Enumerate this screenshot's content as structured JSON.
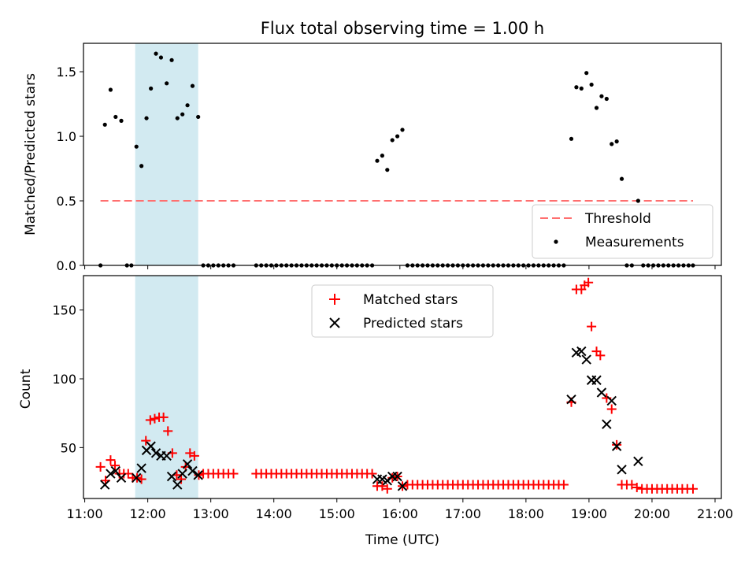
{
  "figure": {
    "title": "Flux total observing time = 1.00 h"
  },
  "colors": {
    "highlight": "#add8e6",
    "threshold": "#ff6f6f",
    "measurement": "#000000",
    "matched": "#ff0000",
    "predicted": "#000000"
  },
  "chart_data": [
    {
      "type": "scatter",
      "name": "ratio-plot",
      "ylabel": "Matched/Predicted stars",
      "xlabel": "",
      "xlim_hours": [
        10.98,
        21.1
      ],
      "ylim": [
        0,
        1.72
      ],
      "yticks": [
        0.0,
        0.5,
        1.0,
        1.5
      ],
      "ytick_labels": [
        "0.0",
        "0.5",
        "1.0",
        "1.5"
      ],
      "highlight_span_hours": [
        11.8,
        12.8
      ],
      "threshold": {
        "label": "Threshold",
        "value": 0.5,
        "x_range_hours": [
          11.25,
          20.65
        ]
      },
      "measurements_label": "Measurements",
      "measurements": [
        [
          11.25,
          0.0
        ],
        [
          11.32,
          1.09
        ],
        [
          11.41,
          1.36
        ],
        [
          11.49,
          1.15
        ],
        [
          11.58,
          1.12
        ],
        [
          11.67,
          0.0
        ],
        [
          11.74,
          0.0
        ],
        [
          11.82,
          0.92
        ],
        [
          11.9,
          0.77
        ],
        [
          11.98,
          1.14
        ],
        [
          12.05,
          1.37
        ],
        [
          12.13,
          1.64
        ],
        [
          12.21,
          1.61
        ],
        [
          12.3,
          1.41
        ],
        [
          12.38,
          1.59
        ],
        [
          12.47,
          1.14
        ],
        [
          12.55,
          1.17
        ],
        [
          12.63,
          1.24
        ],
        [
          12.71,
          1.39
        ],
        [
          12.8,
          1.15
        ],
        [
          12.88,
          0.0
        ],
        [
          12.96,
          0.0
        ],
        [
          13.04,
          0.0
        ],
        [
          13.12,
          0.0
        ],
        [
          13.2,
          0.0
        ],
        [
          13.28,
          0.0
        ],
        [
          13.36,
          0.0
        ],
        [
          13.72,
          0.0
        ],
        [
          13.8,
          0.0
        ],
        [
          13.88,
          0.0
        ],
        [
          13.96,
          0.0
        ],
        [
          14.04,
          0.0
        ],
        [
          14.12,
          0.0
        ],
        [
          14.2,
          0.0
        ],
        [
          14.28,
          0.0
        ],
        [
          14.36,
          0.0
        ],
        [
          14.44,
          0.0
        ],
        [
          14.52,
          0.0
        ],
        [
          14.6,
          0.0
        ],
        [
          14.68,
          0.0
        ],
        [
          14.76,
          0.0
        ],
        [
          14.84,
          0.0
        ],
        [
          14.92,
          0.0
        ],
        [
          15.0,
          0.0
        ],
        [
          15.08,
          0.0
        ],
        [
          15.16,
          0.0
        ],
        [
          15.24,
          0.0
        ],
        [
          15.32,
          0.0
        ],
        [
          15.4,
          0.0
        ],
        [
          15.48,
          0.0
        ],
        [
          15.56,
          0.0
        ],
        [
          15.64,
          0.81
        ],
        [
          15.72,
          0.85
        ],
        [
          15.8,
          0.74
        ],
        [
          15.88,
          0.97
        ],
        [
          15.96,
          1.0
        ],
        [
          16.04,
          1.05
        ],
        [
          16.12,
          0.0
        ],
        [
          16.2,
          0.0
        ],
        [
          16.28,
          0.0
        ],
        [
          16.36,
          0.0
        ],
        [
          16.44,
          0.0
        ],
        [
          16.52,
          0.0
        ],
        [
          16.6,
          0.0
        ],
        [
          16.68,
          0.0
        ],
        [
          16.76,
          0.0
        ],
        [
          16.84,
          0.0
        ],
        [
          16.92,
          0.0
        ],
        [
          17.0,
          0.0
        ],
        [
          17.08,
          0.0
        ],
        [
          17.16,
          0.0
        ],
        [
          17.24,
          0.0
        ],
        [
          17.32,
          0.0
        ],
        [
          17.4,
          0.0
        ],
        [
          17.48,
          0.0
        ],
        [
          17.56,
          0.0
        ],
        [
          17.64,
          0.0
        ],
        [
          17.72,
          0.0
        ],
        [
          17.8,
          0.0
        ],
        [
          17.88,
          0.0
        ],
        [
          17.96,
          0.0
        ],
        [
          18.04,
          0.0
        ],
        [
          18.12,
          0.0
        ],
        [
          18.2,
          0.0
        ],
        [
          18.28,
          0.0
        ],
        [
          18.36,
          0.0
        ],
        [
          18.44,
          0.0
        ],
        [
          18.52,
          0.0
        ],
        [
          18.6,
          0.0
        ],
        [
          18.72,
          0.98
        ],
        [
          18.8,
          1.38
        ],
        [
          18.88,
          1.37
        ],
        [
          18.96,
          1.49
        ],
        [
          19.04,
          1.4
        ],
        [
          19.12,
          1.22
        ],
        [
          19.2,
          1.31
        ],
        [
          19.28,
          1.29
        ],
        [
          19.36,
          0.94
        ],
        [
          19.44,
          0.96
        ],
        [
          19.52,
          0.67
        ],
        [
          19.6,
          0.0
        ],
        [
          19.68,
          0.0
        ],
        [
          19.78,
          0.5
        ],
        [
          19.86,
          0.0
        ],
        [
          19.94,
          0.0
        ],
        [
          20.02,
          0.0
        ],
        [
          20.1,
          0.0
        ],
        [
          20.18,
          0.0
        ],
        [
          20.26,
          0.0
        ],
        [
          20.34,
          0.0
        ],
        [
          20.42,
          0.0
        ],
        [
          20.5,
          0.0
        ],
        [
          20.58,
          0.0
        ],
        [
          20.65,
          0.0
        ]
      ]
    },
    {
      "type": "scatter",
      "name": "count-plot",
      "ylabel": "Count",
      "xlabel": "Time (UTC)",
      "xlim_hours": [
        10.98,
        21.1
      ],
      "ylim": [
        13,
        175
      ],
      "yticks": [
        50,
        100,
        150
      ],
      "ytick_labels": [
        "50",
        "100",
        "150"
      ],
      "xticks_hours": [
        11,
        12,
        13,
        14,
        15,
        16,
        17,
        18,
        19,
        20,
        21
      ],
      "xtick_labels": [
        "11:00",
        "12:00",
        "13:00",
        "14:00",
        "15:00",
        "16:00",
        "17:00",
        "18:00",
        "19:00",
        "20:00",
        "21:00"
      ],
      "highlight_span_hours": [
        11.8,
        12.8
      ],
      "series": [
        {
          "name": "Matched stars",
          "marker": "plus",
          "points": [
            [
              11.25,
              36
            ],
            [
              11.33,
              26
            ],
            [
              11.41,
              41
            ],
            [
              11.48,
              37
            ],
            [
              11.55,
              31
            ],
            [
              11.62,
              31
            ],
            [
              11.69,
              31
            ],
            [
              11.76,
              28
            ],
            [
              11.83,
              28
            ],
            [
              11.9,
              27
            ],
            [
              11.97,
              55
            ],
            [
              12.04,
              70
            ],
            [
              12.11,
              71
            ],
            [
              12.18,
              72
            ],
            [
              12.25,
              72
            ],
            [
              12.32,
              62
            ],
            [
              12.39,
              46
            ],
            [
              12.46,
              30
            ],
            [
              12.53,
              27
            ],
            [
              12.6,
              36
            ],
            [
              12.67,
              46
            ],
            [
              12.74,
              44
            ],
            [
              12.81,
              30
            ],
            [
              12.88,
              31
            ],
            [
              12.96,
              31
            ],
            [
              13.04,
              31
            ],
            [
              13.12,
              31
            ],
            [
              13.2,
              31
            ],
            [
              13.28,
              31
            ],
            [
              13.36,
              31
            ],
            [
              13.72,
              31
            ],
            [
              13.8,
              31
            ],
            [
              13.88,
              31
            ],
            [
              13.96,
              31
            ],
            [
              14.04,
              31
            ],
            [
              14.12,
              31
            ],
            [
              14.2,
              31
            ],
            [
              14.28,
              31
            ],
            [
              14.36,
              31
            ],
            [
              14.44,
              31
            ],
            [
              14.52,
              31
            ],
            [
              14.6,
              31
            ],
            [
              14.68,
              31
            ],
            [
              14.76,
              31
            ],
            [
              14.84,
              31
            ],
            [
              14.92,
              31
            ],
            [
              15.0,
              31
            ],
            [
              15.08,
              31
            ],
            [
              15.16,
              31
            ],
            [
              15.24,
              31
            ],
            [
              15.32,
              31
            ],
            [
              15.4,
              31
            ],
            [
              15.48,
              31
            ],
            [
              15.56,
              31
            ],
            [
              15.64,
              22
            ],
            [
              15.72,
              22
            ],
            [
              15.8,
              20
            ],
            [
              15.88,
              28
            ],
            [
              15.96,
              29
            ],
            [
              16.04,
              22
            ],
            [
              16.12,
              23
            ],
            [
              16.2,
              23
            ],
            [
              16.28,
              23
            ],
            [
              16.36,
              23
            ],
            [
              16.44,
              23
            ],
            [
              16.52,
              23
            ],
            [
              16.6,
              23
            ],
            [
              16.68,
              23
            ],
            [
              16.76,
              23
            ],
            [
              16.84,
              23
            ],
            [
              16.92,
              23
            ],
            [
              17.0,
              23
            ],
            [
              17.08,
              23
            ],
            [
              17.16,
              23
            ],
            [
              17.24,
              23
            ],
            [
              17.32,
              23
            ],
            [
              17.4,
              23
            ],
            [
              17.48,
              23
            ],
            [
              17.56,
              23
            ],
            [
              17.64,
              23
            ],
            [
              17.72,
              23
            ],
            [
              17.8,
              23
            ],
            [
              17.88,
              23
            ],
            [
              17.96,
              23
            ],
            [
              18.04,
              23
            ],
            [
              18.12,
              23
            ],
            [
              18.2,
              23
            ],
            [
              18.28,
              23
            ],
            [
              18.36,
              23
            ],
            [
              18.44,
              23
            ],
            [
              18.52,
              23
            ],
            [
              18.6,
              23
            ],
            [
              18.72,
              83
            ],
            [
              18.8,
              165
            ],
            [
              18.88,
              165
            ],
            [
              18.93,
              168
            ],
            [
              18.99,
              170
            ],
            [
              19.04,
              138
            ],
            [
              19.12,
              120
            ],
            [
              19.18,
              117
            ],
            [
              19.28,
              86
            ],
            [
              19.36,
              78
            ],
            [
              19.44,
              52
            ],
            [
              19.52,
              23
            ],
            [
              19.6,
              23
            ],
            [
              19.68,
              23
            ],
            [
              19.76,
              21
            ],
            [
              19.84,
              20
            ],
            [
              19.92,
              20
            ],
            [
              20.0,
              20
            ],
            [
              20.08,
              20
            ],
            [
              20.16,
              20
            ],
            [
              20.24,
              20
            ],
            [
              20.32,
              20
            ],
            [
              20.4,
              20
            ],
            [
              20.48,
              20
            ],
            [
              20.56,
              20
            ],
            [
              20.65,
              20
            ]
          ]
        },
        {
          "name": "Predicted stars",
          "marker": "x",
          "points": [
            [
              11.32,
              23
            ],
            [
              11.41,
              31
            ],
            [
              11.49,
              33
            ],
            [
              11.58,
              28
            ],
            [
              11.82,
              28
            ],
            [
              11.9,
              35
            ],
            [
              11.98,
              48
            ],
            [
              12.05,
              51
            ],
            [
              12.13,
              46
            ],
            [
              12.21,
              44
            ],
            [
              12.3,
              44
            ],
            [
              12.38,
              29
            ],
            [
              12.47,
              23
            ],
            [
              12.55,
              31
            ],
            [
              12.63,
              38
            ],
            [
              12.71,
              33
            ],
            [
              12.8,
              30
            ],
            [
              15.64,
              27
            ],
            [
              15.72,
              27
            ],
            [
              15.8,
              26
            ],
            [
              15.88,
              29
            ],
            [
              15.96,
              29
            ],
            [
              16.04,
              22
            ],
            [
              18.72,
              85
            ],
            [
              18.8,
              119
            ],
            [
              18.88,
              120
            ],
            [
              18.96,
              114
            ],
            [
              19.04,
              99
            ],
            [
              19.12,
              99
            ],
            [
              19.2,
              90
            ],
            [
              19.28,
              67
            ],
            [
              19.36,
              84
            ],
            [
              19.44,
              51
            ],
            [
              19.52,
              34
            ],
            [
              19.78,
              40
            ]
          ]
        }
      ]
    }
  ]
}
